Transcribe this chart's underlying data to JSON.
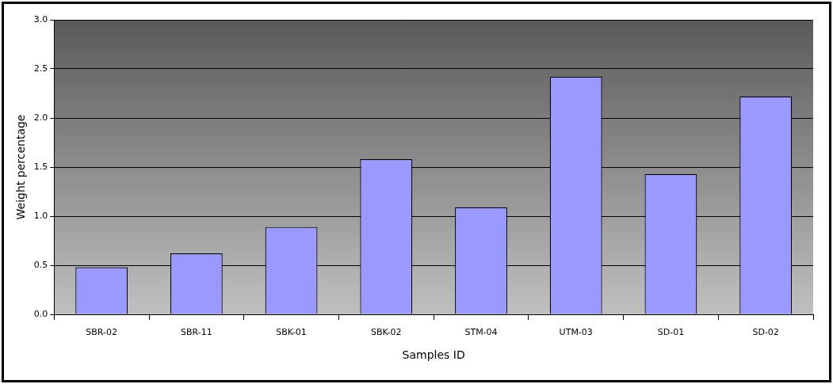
{
  "chart_data": {
    "type": "bar",
    "xlabel": "Samples ID",
    "ylabel": "Weight percentage",
    "categories": [
      "SBR-02",
      "SBR-11",
      "SBK-01",
      "SBK-02",
      "STM-04",
      "UTM-03",
      "SD-01",
      "SD-02"
    ],
    "values": [
      0.48,
      0.62,
      0.89,
      1.58,
      1.09,
      2.42,
      1.43,
      2.22
    ],
    "color": "#9999ff",
    "ylim": [
      0,
      3.0
    ],
    "yticks": [
      {
        "value": 0,
        "label": "0.0"
      },
      {
        "value": 0.5,
        "label": "0.5"
      },
      {
        "value": 1,
        "label": "1.0"
      },
      {
        "value": 1.5,
        "label": "1.5"
      },
      {
        "value": 2,
        "label": "2.0"
      },
      {
        "value": 2.5,
        "label": "2.5"
      },
      {
        "value": 3,
        "label": "3.0"
      }
    ],
    "grid": "y",
    "legend": false
  }
}
